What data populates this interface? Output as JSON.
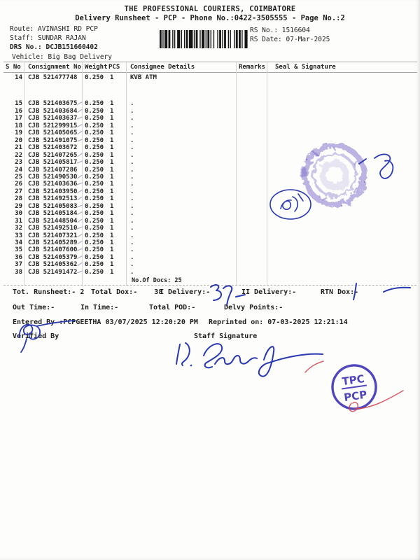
{
  "header": {
    "company": "THE PROFESSIONAL COURIERS, COIMBATORE",
    "subtitle": "Delivery Runsheet - PCP - Phone No.:0422-3505555 - Page No.:2",
    "route": "Route: AVINASHI RD PCP",
    "staff": "Staff: SUNDAR RAJAN",
    "drs_no": "DRS No.: DCJB151660402",
    "vehicle": "Vehicle: Big Bag Delivery",
    "rs_no": "RS No.: 1516604",
    "rs_date": "RS Date: 07-Mar-2025"
  },
  "table": {
    "columns": [
      "S No",
      "Consignment No",
      "Weight",
      "PCS",
      "Consignee Details",
      "Remarks",
      "Seal & Signature"
    ],
    "rows": [
      {
        "sno": "14",
        "consignment": "CJB 521477748",
        "weight": "0.250",
        "pcs": "1",
        "consignee": "KVB ATM",
        "tick": false
      },
      {
        "sno": "15",
        "consignment": "CJB 521403675",
        "weight": "0.250",
        "pcs": "1",
        "consignee": ".",
        "tick": true
      },
      {
        "sno": "16",
        "consignment": "CJB 521403684",
        "weight": "0.250",
        "pcs": "1",
        "consignee": ".",
        "tick": true
      },
      {
        "sno": "17",
        "consignment": "CJB 521403637",
        "weight": "0.250",
        "pcs": "1",
        "consignee": ".",
        "tick": true
      },
      {
        "sno": "18",
        "consignment": "CJB 521299915",
        "weight": "0.250",
        "pcs": "1",
        "consignee": ".",
        "tick": true
      },
      {
        "sno": "19",
        "consignment": "CJB 521405065",
        "weight": "0.250",
        "pcs": "1",
        "consignee": ".",
        "tick": true
      },
      {
        "sno": "20",
        "consignment": "CJB 521491075",
        "weight": "0.250",
        "pcs": "1",
        "consignee": ".",
        "tick": true
      },
      {
        "sno": "21",
        "consignment": "CJB 521403672",
        "weight": "0.250",
        "pcs": "1",
        "consignee": ".",
        "tick": false
      },
      {
        "sno": "22",
        "consignment": "CJB 521407265",
        "weight": "0.250",
        "pcs": "1",
        "consignee": ".",
        "tick": true
      },
      {
        "sno": "23",
        "consignment": "CJB 521405817",
        "weight": "0.250",
        "pcs": "1",
        "consignee": ".",
        "tick": true
      },
      {
        "sno": "24",
        "consignment": "CJB 521407286",
        "weight": "0.250",
        "pcs": "1",
        "consignee": ".",
        "tick": false
      },
      {
        "sno": "25",
        "consignment": "CJB 521490530",
        "weight": "0.250",
        "pcs": "1",
        "consignee": ".",
        "tick": true
      },
      {
        "sno": "26",
        "consignment": "CJB 521403636",
        "weight": "0.250",
        "pcs": "1",
        "consignee": ".",
        "tick": true
      },
      {
        "sno": "27",
        "consignment": "CJB 521403950",
        "weight": "0.250",
        "pcs": "1",
        "consignee": ".",
        "tick": true
      },
      {
        "sno": "28",
        "consignment": "CJB 521492513",
        "weight": "0.250",
        "pcs": "1",
        "consignee": ".",
        "tick": true
      },
      {
        "sno": "29",
        "consignment": "CJB 521405083",
        "weight": "0.250",
        "pcs": "1",
        "consignee": ".",
        "tick": true
      },
      {
        "sno": "30",
        "consignment": "CJB 521405184",
        "weight": "0.250",
        "pcs": "1",
        "consignee": ".",
        "tick": true
      },
      {
        "sno": "31",
        "consignment": "CJB 521448504",
        "weight": "0.250",
        "pcs": "1",
        "consignee": ".",
        "tick": true
      },
      {
        "sno": "32",
        "consignment": "CJB 521492510",
        "weight": "0.250",
        "pcs": "1",
        "consignee": ".",
        "tick": true
      },
      {
        "sno": "33",
        "consignment": "CJB 521407321",
        "weight": "0.250",
        "pcs": "1",
        "consignee": ".",
        "tick": true
      },
      {
        "sno": "34",
        "consignment": "CJB 521405289",
        "weight": "0.250",
        "pcs": "1",
        "consignee": ".",
        "tick": true
      },
      {
        "sno": "35",
        "consignment": "CJB 521407600",
        "weight": "0.250",
        "pcs": "1",
        "consignee": ".",
        "tick": true
      },
      {
        "sno": "36",
        "consignment": "CJB 521405379",
        "weight": "0.250",
        "pcs": "1",
        "consignee": ".",
        "tick": true
      },
      {
        "sno": "37",
        "consignment": "CJB 521405362",
        "weight": "0.250",
        "pcs": "1",
        "consignee": ".",
        "tick": true
      },
      {
        "sno": "38",
        "consignment": "CJB 521491472",
        "weight": "0.250",
        "pcs": "1",
        "consignee": ".",
        "tick": true
      }
    ],
    "no_of_docs": "No.Of Docs: 25"
  },
  "totals": {
    "runsheet": "Tot. Runsheet:- 2",
    "total_dox": "Total Dox:-    38",
    "i_delivery": "I Delivery:-",
    "i_delivery_handwritten": "37",
    "ii_delivery": "II Delivery:-",
    "rtn_dox": "RTN Dox:-",
    "rtn_dox_handwritten": "1",
    "out_time": "Out Time:-",
    "in_time": "In Time:-",
    "total_pod": "Total POD:-",
    "delvy_points": "Delvy Points:-"
  },
  "footer": {
    "entered_by": "Entered By :PCPGEETHA 03/07/2025 12:20:20 PM",
    "reprinted": "Reprinted on: 07-03-2025 12:21:14",
    "verified_by": "Verified By",
    "staff_signature_label": "Staff Signature"
  },
  "stamps": {
    "tpc_top": "TPC",
    "tpc_bottom": "PCP",
    "stamp_color": "#4136b8",
    "smudge_color": "#7b68c9",
    "ink_color": "#2939b0",
    "red_ink": "#cf4450"
  }
}
